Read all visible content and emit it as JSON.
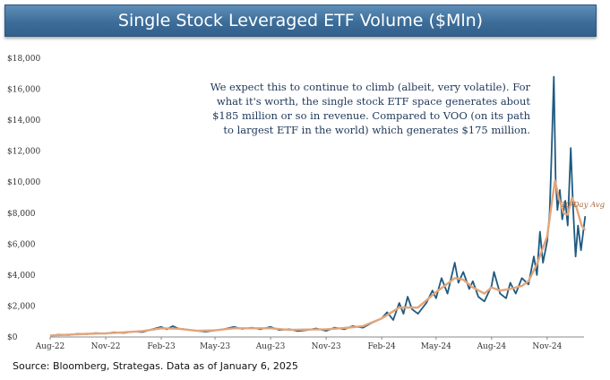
{
  "chart_data": {
    "type": "line",
    "title": "Single Stock Leveraged ETF Volume ($Mln)",
    "ylim": [
      0,
      18000
    ],
    "y_ticks": [
      "$18,000",
      "$16,000",
      "$14,000",
      "$12,000",
      "$10,000",
      "$8,000",
      "$6,000",
      "$4,000",
      "$2,000",
      "$0"
    ],
    "y_tick_values": [
      18000,
      16000,
      14000,
      12000,
      10000,
      8000,
      6000,
      4000,
      2000,
      0
    ],
    "x_ticks": [
      "Aug-22",
      "Nov-22",
      "Feb-23",
      "May-23",
      "Aug-23",
      "Nov-23",
      "Feb-24",
      "May-24",
      "Aug-24",
      "Nov-24"
    ],
    "x_range": [
      "2022-08",
      "2025-01"
    ],
    "annotation": "We expect this to continue to climb (albeit, very volatile). For what it's worth, the single stock ETF space generates about $185 million or so in revenue. Compared to VOO (on its path to largest ETF in the world) which generates $175 million.",
    "annotation_lines": [
      "We expect this to continue to climb (albeit, very volatile). For",
      "what it's worth, the single stock ETF space generates about",
      "$185 million or so in revenue. Compared to VOO (on its path",
      "to largest ETF in the world) which generates $175 million."
    ],
    "series": [
      {
        "name": "",
        "color": "#1f5a80",
        "points": [
          [
            "2022-08-01",
            80
          ],
          [
            "2022-08-15",
            150
          ],
          [
            "2022-09-01",
            120
          ],
          [
            "2022-09-15",
            200
          ],
          [
            "2022-10-01",
            180
          ],
          [
            "2022-10-15",
            250
          ],
          [
            "2022-11-01",
            220
          ],
          [
            "2022-11-15",
            300
          ],
          [
            "2022-12-01",
            260
          ],
          [
            "2022-12-15",
            350
          ],
          [
            "2023-01-01",
            320
          ],
          [
            "2023-01-15",
            480
          ],
          [
            "2023-02-01",
            650
          ],
          [
            "2023-02-10",
            500
          ],
          [
            "2023-02-20",
            700
          ],
          [
            "2023-03-01",
            550
          ],
          [
            "2023-03-15",
            480
          ],
          [
            "2023-04-01",
            400
          ],
          [
            "2023-04-15",
            350
          ],
          [
            "2023-05-01",
            420
          ],
          [
            "2023-05-15",
            500
          ],
          [
            "2023-06-01",
            650
          ],
          [
            "2023-06-15",
            520
          ],
          [
            "2023-07-01",
            600
          ],
          [
            "2023-07-15",
            500
          ],
          [
            "2023-08-01",
            650
          ],
          [
            "2023-08-15",
            450
          ],
          [
            "2023-09-01",
            500
          ],
          [
            "2023-09-15",
            380
          ],
          [
            "2023-10-01",
            450
          ],
          [
            "2023-10-15",
            550
          ],
          [
            "2023-11-01",
            400
          ],
          [
            "2023-11-15",
            600
          ],
          [
            "2023-12-01",
            500
          ],
          [
            "2023-12-15",
            700
          ],
          [
            "2024-01-01",
            600
          ],
          [
            "2024-01-15",
            900
          ],
          [
            "2024-02-01",
            1200
          ],
          [
            "2024-02-10",
            1600
          ],
          [
            "2024-02-20",
            1100
          ],
          [
            "2024-03-01",
            2200
          ],
          [
            "2024-03-08",
            1500
          ],
          [
            "2024-03-15",
            2600
          ],
          [
            "2024-03-22",
            1800
          ],
          [
            "2024-04-01",
            1500
          ],
          [
            "2024-04-15",
            2200
          ],
          [
            "2024-04-25",
            3000
          ],
          [
            "2024-05-01",
            2500
          ],
          [
            "2024-05-10",
            3800
          ],
          [
            "2024-05-20",
            2800
          ],
          [
            "2024-06-01",
            4800
          ],
          [
            "2024-06-07",
            3500
          ],
          [
            "2024-06-15",
            4200
          ],
          [
            "2024-06-25",
            3100
          ],
          [
            "2024-07-01",
            3600
          ],
          [
            "2024-07-10",
            2600
          ],
          [
            "2024-07-20",
            2300
          ],
          [
            "2024-08-01",
            3300
          ],
          [
            "2024-08-05",
            4200
          ],
          [
            "2024-08-15",
            2800
          ],
          [
            "2024-08-25",
            2500
          ],
          [
            "2024-09-01",
            3500
          ],
          [
            "2024-09-10",
            2800
          ],
          [
            "2024-09-20",
            3800
          ],
          [
            "2024-10-01",
            3400
          ],
          [
            "2024-10-10",
            5200
          ],
          [
            "2024-10-15",
            4000
          ],
          [
            "2024-10-20",
            6800
          ],
          [
            "2024-10-25",
            4800
          ],
          [
            "2024-11-01",
            6200
          ],
          [
            "2024-11-05",
            8000
          ],
          [
            "2024-11-08",
            11500
          ],
          [
            "2024-11-12",
            16800
          ],
          [
            "2024-11-15",
            10200
          ],
          [
            "2024-11-18",
            8200
          ],
          [
            "2024-11-22",
            9500
          ],
          [
            "2024-11-26",
            7600
          ],
          [
            "2024-12-01",
            8800
          ],
          [
            "2024-12-05",
            7200
          ],
          [
            "2024-12-10",
            12200
          ],
          [
            "2024-12-14",
            8200
          ],
          [
            "2024-12-18",
            5200
          ],
          [
            "2024-12-22",
            7200
          ],
          [
            "2024-12-27",
            5600
          ],
          [
            "2025-01-03",
            7800
          ]
        ]
      },
      {
        "name": "10-Day Avg",
        "color": "#e3a57a",
        "points": [
          [
            "2022-08-01",
            100
          ],
          [
            "2022-09-01",
            150
          ],
          [
            "2022-10-01",
            200
          ],
          [
            "2022-11-01",
            240
          ],
          [
            "2022-12-01",
            300
          ],
          [
            "2023-01-01",
            380
          ],
          [
            "2023-02-01",
            560
          ],
          [
            "2023-03-01",
            530
          ],
          [
            "2023-04-01",
            400
          ],
          [
            "2023-05-01",
            430
          ],
          [
            "2023-06-01",
            560
          ],
          [
            "2023-07-01",
            560
          ],
          [
            "2023-08-01",
            560
          ],
          [
            "2023-09-01",
            460
          ],
          [
            "2023-10-01",
            480
          ],
          [
            "2023-11-01",
            500
          ],
          [
            "2023-12-01",
            580
          ],
          [
            "2024-01-01",
            700
          ],
          [
            "2024-02-01",
            1200
          ],
          [
            "2024-03-01",
            1900
          ],
          [
            "2024-04-01",
            1900
          ],
          [
            "2024-05-01",
            2900
          ],
          [
            "2024-05-15",
            3300
          ],
          [
            "2024-06-01",
            3800
          ],
          [
            "2024-06-15",
            3700
          ],
          [
            "2024-07-01",
            3200
          ],
          [
            "2024-07-20",
            2800
          ],
          [
            "2024-08-01",
            3200
          ],
          [
            "2024-08-15",
            3000
          ],
          [
            "2024-09-01",
            3100
          ],
          [
            "2024-09-20",
            3300
          ],
          [
            "2024-10-01",
            3600
          ],
          [
            "2024-10-15",
            4700
          ],
          [
            "2024-11-01",
            6500
          ],
          [
            "2024-11-08",
            8500
          ],
          [
            "2024-11-14",
            10100
          ],
          [
            "2024-11-20",
            9000
          ],
          [
            "2024-11-28",
            8000
          ],
          [
            "2024-12-05",
            7900
          ],
          [
            "2024-12-12",
            9000
          ],
          [
            "2024-12-20",
            8300
          ],
          [
            "2024-12-28",
            7200
          ],
          [
            "2025-01-03",
            6900
          ]
        ]
      }
    ],
    "grid": false,
    "legend": "none"
  },
  "source": "Source: Bloomberg, Strategas. Data as of January 6, 2025"
}
